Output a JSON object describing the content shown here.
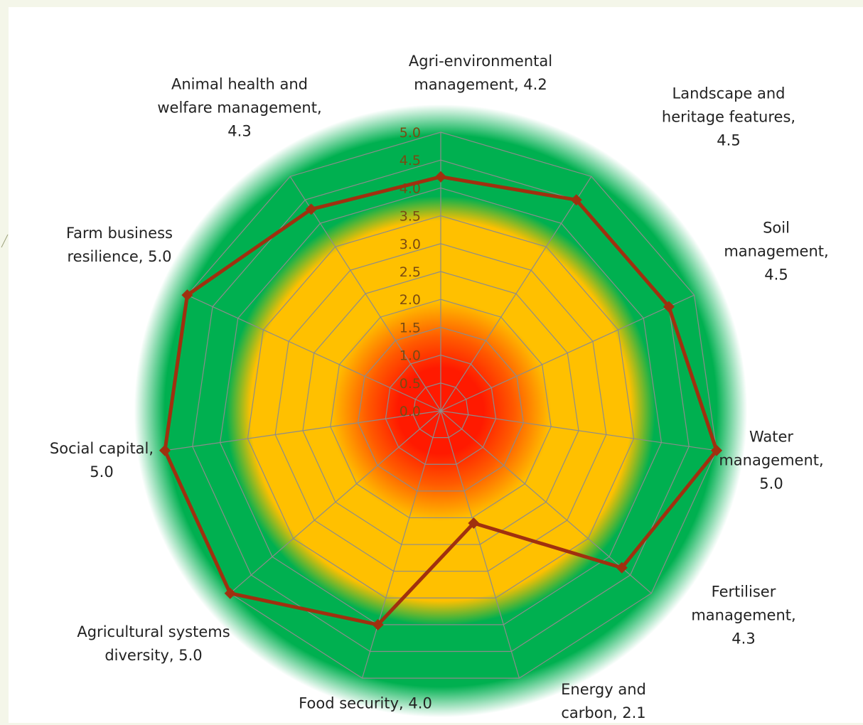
{
  "chart_data": {
    "type": "radar",
    "rmax": 5.0,
    "ticks": [
      "0.0",
      "0.5",
      "1.0",
      "1.5",
      "2.0",
      "2.5",
      "3.0",
      "3.5",
      "4.0",
      "4.5",
      "5.0"
    ],
    "categories": [
      {
        "label": "Agri-environmental\nmanagement, 4.2",
        "value": 4.2
      },
      {
        "label": "Landscape and\nheritage features, 4.5",
        "value": 4.5
      },
      {
        "label": "Soil\nmanagement, 4.5",
        "value": 4.5
      },
      {
        "label": "Water\nmanagement,\n5.0",
        "value": 5.0
      },
      {
        "label": "Fertiliser\nmanagement,\n4.3",
        "value": 4.3
      },
      {
        "label": "Energy and\ncarbon, 2.1",
        "value": 2.1
      },
      {
        "label": "Food security, 4.0",
        "value": 4.0
      },
      {
        "label": "Agricultural systems\ndiversity, 5.0",
        "value": 5.0
      },
      {
        "label": "Social capital,\n5.0",
        "value": 5.0
      },
      {
        "label": "Farm business\nresilience, 5.0",
        "value": 5.0
      },
      {
        "label": "Animal health and\nwelfare management,\n4.3",
        "value": 4.3
      }
    ],
    "bands": [
      {
        "from": 0.0,
        "to": 1.5,
        "color": "#ff1a00"
      },
      {
        "from": 1.5,
        "to": 3.5,
        "color": "#ffc000"
      },
      {
        "from": 3.5,
        "to": 5.0,
        "color": "#00b050"
      }
    ],
    "colors": {
      "series_line": "#a0300f",
      "grid": "#8c8c8c",
      "ticks": "#7a4a12"
    },
    "grid": true,
    "legend": "none"
  }
}
